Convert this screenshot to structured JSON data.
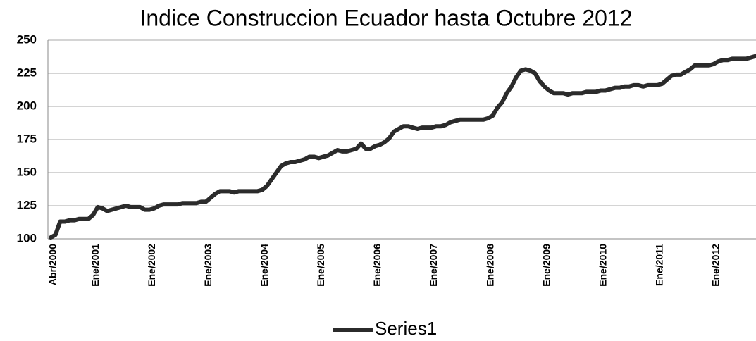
{
  "chart_data": {
    "type": "line",
    "title": "Indice Construccion Ecuador hasta Octubre 2012",
    "categories": [
      "Abr/2000",
      null,
      null,
      null,
      null,
      null,
      null,
      null,
      null,
      "Ene/2001",
      null,
      null,
      null,
      null,
      null,
      null,
      null,
      null,
      null,
      null,
      null,
      "Ene/2002",
      null,
      null,
      null,
      null,
      null,
      null,
      null,
      null,
      null,
      null,
      null,
      "Ene/2003",
      null,
      null,
      null,
      null,
      null,
      null,
      null,
      null,
      null,
      null,
      null,
      "Ene/2004",
      null,
      null,
      null,
      null,
      null,
      null,
      null,
      null,
      null,
      null,
      null,
      "Ene/2005",
      null,
      null,
      null,
      null,
      null,
      null,
      null,
      null,
      null,
      null,
      null,
      "Ene/2006",
      null,
      null,
      null,
      null,
      null,
      null,
      null,
      null,
      null,
      null,
      null,
      "Ene/2007",
      null,
      null,
      null,
      null,
      null,
      null,
      null,
      null,
      null,
      null,
      null,
      "Ene/2008",
      null,
      null,
      null,
      null,
      null,
      null,
      null,
      null,
      null,
      null,
      null,
      "Ene/2009",
      null,
      null,
      null,
      null,
      null,
      null,
      null,
      null,
      null,
      null,
      null,
      "Ene/2010",
      null,
      null,
      null,
      null,
      null,
      null,
      null,
      null,
      null,
      null,
      null,
      "Ene/2011",
      null,
      null,
      null,
      null,
      null,
      null,
      null,
      null,
      null,
      null,
      null,
      "Ene/2012",
      null,
      null,
      null,
      null,
      null,
      null,
      null,
      null,
      null
    ],
    "series": [
      {
        "name": "Series1",
        "color": "#2b2b2b",
        "values": [
          101,
          103,
          113,
          113,
          114,
          114,
          115,
          115,
          115,
          118,
          124,
          123,
          121,
          122,
          123,
          124,
          125,
          124,
          124,
          124,
          122,
          122,
          123,
          125,
          126,
          126,
          126,
          126,
          127,
          127,
          127,
          127,
          128,
          128,
          131,
          134,
          136,
          136,
          136,
          135,
          136,
          136,
          136,
          136,
          136,
          137,
          140,
          145,
          150,
          155,
          157,
          158,
          158,
          159,
          160,
          162,
          162,
          161,
          162,
          163,
          165,
          167,
          166,
          166,
          167,
          168,
          172,
          168,
          168,
          170,
          171,
          173,
          176,
          181,
          183,
          185,
          185,
          184,
          183,
          184,
          184,
          184,
          185,
          185,
          186,
          188,
          189,
          190,
          190,
          190,
          190,
          190,
          190,
          191,
          193,
          199,
          203,
          210,
          215,
          222,
          227,
          228,
          227,
          225,
          219,
          215,
          212,
          210,
          210,
          210,
          209,
          210,
          210,
          210,
          211,
          211,
          211,
          212,
          212,
          213,
          214,
          214,
          215,
          215,
          216,
          216,
          215,
          216,
          216,
          216,
          217,
          220,
          223,
          224,
          224,
          226,
          228,
          231,
          231,
          231,
          231,
          232,
          234,
          235,
          235,
          236,
          236,
          236,
          236,
          237,
          238
        ]
      }
    ],
    "ylim": [
      100,
      250
    ],
    "yticks": [
      100,
      125,
      150,
      175,
      200,
      225,
      250
    ],
    "grid": true,
    "legend": "bottom"
  }
}
